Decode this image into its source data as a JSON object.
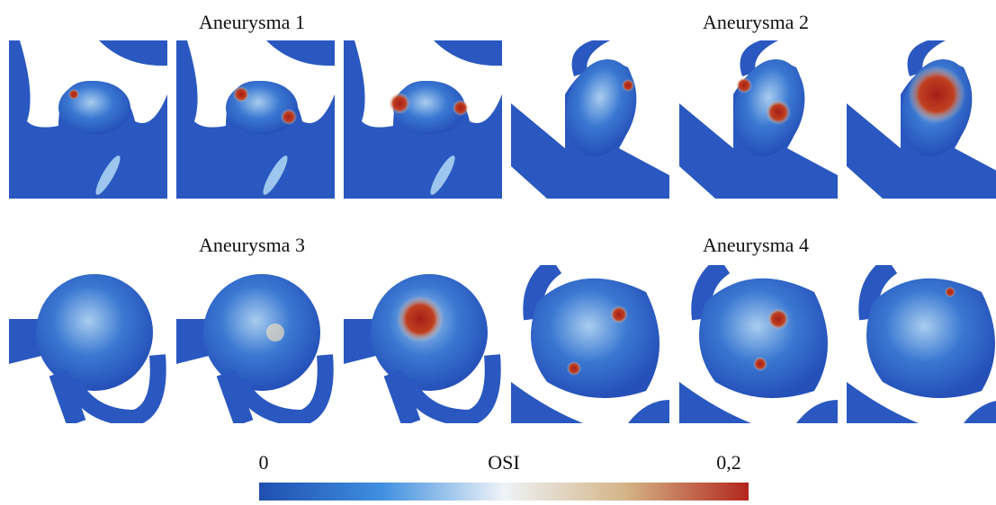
{
  "titles": [
    "Aneurysma 1",
    "Aneurysma 2",
    "Aneurysma 3",
    "Aneurysma 4"
  ],
  "colorbar": {
    "label": "OSI",
    "min_label": "0",
    "max_label": "0,2"
  }
}
